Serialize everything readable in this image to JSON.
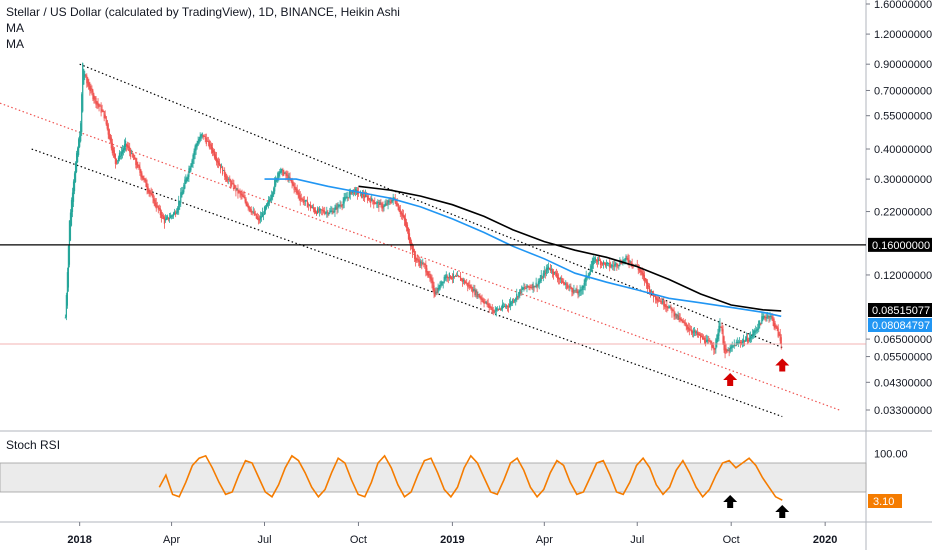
{
  "legend": {
    "title": "Stellar / US Dollar (calculated by TradingView), 1D, BINANCE, Heikin Ashi",
    "ma1": "MA",
    "ma2": "MA"
  },
  "rsi_panel": {
    "title": "Stoch RSI"
  },
  "colors": {
    "up": "#26a69a",
    "down": "#ef5350",
    "ma_fast": "#2196f3",
    "ma_slow": "#000000",
    "stoch": "#f57c00",
    "arrow_red": "#d50000",
    "arrow_black": "#000000",
    "badge_red": "#ef5350",
    "badge_blue": "#2196f3",
    "badge_orange": "#f57c00"
  },
  "chart_data": [
    {
      "type": "candlestick",
      "title": "Stellar / US Dollar (calculated by TradingView), 1D, BINANCE, Heikin Ashi",
      "y_scale": "log",
      "y_ticks": [
        "1.60000000",
        "1.20000000",
        "0.90000000",
        "0.70000000",
        "0.55000000",
        "0.40000000",
        "0.30000000",
        "0.22000000",
        "0.12000000",
        "0.06500000",
        "0.05500000",
        "0.04300000",
        "0.03300000"
      ],
      "x_ticks": [
        "2018",
        "Apr",
        "Jul",
        "Oct",
        "2019",
        "Apr",
        "Jul",
        "Oct",
        "2020"
      ],
      "horizontal_line": {
        "value": 0.16,
        "label": "0.16000000"
      },
      "price_badges": [
        {
          "value": 0.08515077,
          "label": "0.08515077",
          "color": "black"
        },
        {
          "value": 0.08084797,
          "label": "0.08084797",
          "color": "blue"
        }
      ],
      "series_price": [
        [
          "2017-12-18",
          0.08
        ],
        [
          "2017-12-22",
          0.2
        ],
        [
          "2017-12-26",
          0.3
        ],
        [
          "2018-01-02",
          0.5
        ],
        [
          "2018-01-04",
          0.9
        ],
        [
          "2018-01-08",
          0.75
        ],
        [
          "2018-01-15",
          0.65
        ],
        [
          "2018-01-25",
          0.55
        ],
        [
          "2018-02-05",
          0.35
        ],
        [
          "2018-02-15",
          0.42
        ],
        [
          "2018-03-01",
          0.32
        ],
        [
          "2018-03-15",
          0.24
        ],
        [
          "2018-03-25",
          0.2
        ],
        [
          "2018-04-05",
          0.22
        ],
        [
          "2018-04-15",
          0.3
        ],
        [
          "2018-04-25",
          0.42
        ],
        [
          "2018-05-01",
          0.46
        ],
        [
          "2018-05-10",
          0.4
        ],
        [
          "2018-05-25",
          0.3
        ],
        [
          "2018-06-10",
          0.25
        ],
        [
          "2018-06-25",
          0.2
        ],
        [
          "2018-07-05",
          0.24
        ],
        [
          "2018-07-15",
          0.33
        ],
        [
          "2018-07-25",
          0.3
        ],
        [
          "2018-08-05",
          0.25
        ],
        [
          "2018-08-20",
          0.22
        ],
        [
          "2018-09-05",
          0.22
        ],
        [
          "2018-09-15",
          0.24
        ],
        [
          "2018-09-25",
          0.27
        ],
        [
          "2018-10-10",
          0.25
        ],
        [
          "2018-10-25",
          0.23
        ],
        [
          "2018-11-05",
          0.25
        ],
        [
          "2018-11-15",
          0.2
        ],
        [
          "2018-11-25",
          0.14
        ],
        [
          "2018-12-05",
          0.13
        ],
        [
          "2018-12-15",
          0.1
        ],
        [
          "2018-12-25",
          0.12
        ],
        [
          "2019-01-10",
          0.115
        ],
        [
          "2019-01-25",
          0.1
        ],
        [
          "2019-02-10",
          0.085
        ],
        [
          "2019-02-25",
          0.09
        ],
        [
          "2019-03-10",
          0.105
        ],
        [
          "2019-03-25",
          0.11
        ],
        [
          "2019-04-05",
          0.13
        ],
        [
          "2019-04-20",
          0.11
        ],
        [
          "2019-05-05",
          0.1
        ],
        [
          "2019-05-20",
          0.14
        ],
        [
          "2019-06-05",
          0.13
        ],
        [
          "2019-06-20",
          0.14
        ],
        [
          "2019-07-01",
          0.13
        ],
        [
          "2019-07-15",
          0.1
        ],
        [
          "2019-08-01",
          0.088
        ],
        [
          "2019-08-15",
          0.075
        ],
        [
          "2019-09-01",
          0.066
        ],
        [
          "2019-09-15",
          0.06
        ],
        [
          "2019-09-20",
          0.078
        ],
        [
          "2019-09-25",
          0.056
        ],
        [
          "2019-10-05",
          0.062
        ],
        [
          "2019-10-20",
          0.066
        ],
        [
          "2019-11-01",
          0.08
        ],
        [
          "2019-11-08",
          0.082
        ],
        [
          "2019-11-15",
          0.07
        ],
        [
          "2019-11-19",
          0.062
        ]
      ],
      "moving_average_fast": [
        [
          "2018-07-01",
          0.3
        ],
        [
          "2018-08-01",
          0.3
        ],
        [
          "2018-09-01",
          0.28
        ],
        [
          "2018-10-01",
          0.265
        ],
        [
          "2018-11-01",
          0.25
        ],
        [
          "2018-12-01",
          0.23
        ],
        [
          "2019-01-01",
          0.205
        ],
        [
          "2019-02-01",
          0.18
        ],
        [
          "2019-03-01",
          0.158
        ],
        [
          "2019-04-01",
          0.14
        ],
        [
          "2019-05-01",
          0.122
        ],
        [
          "2019-06-01",
          0.112
        ],
        [
          "2019-07-01",
          0.104
        ],
        [
          "2019-08-01",
          0.096
        ],
        [
          "2019-09-01",
          0.092
        ],
        [
          "2019-10-01",
          0.088
        ],
        [
          "2019-11-01",
          0.084
        ],
        [
          "2019-11-19",
          0.0808
        ]
      ],
      "moving_average_slow": [
        [
          "2018-10-01",
          0.28
        ],
        [
          "2018-11-01",
          0.27
        ],
        [
          "2018-12-01",
          0.255
        ],
        [
          "2019-01-01",
          0.235
        ],
        [
          "2019-02-01",
          0.21
        ],
        [
          "2019-03-01",
          0.185
        ],
        [
          "2019-04-01",
          0.165
        ],
        [
          "2019-05-01",
          0.152
        ],
        [
          "2019-06-01",
          0.142
        ],
        [
          "2019-07-01",
          0.13
        ],
        [
          "2019-08-01",
          0.115
        ],
        [
          "2019-09-01",
          0.1
        ],
        [
          "2019-10-01",
          0.09
        ],
        [
          "2019-11-01",
          0.086
        ],
        [
          "2019-11-19",
          0.0851
        ]
      ],
      "trendlines": [
        {
          "style": "dotted",
          "color": "#000000",
          "from": [
            "2018-01-01",
            0.9
          ],
          "to": [
            "2019-11-20",
            0.06
          ]
        },
        {
          "style": "dotted",
          "color": "#000000",
          "from": [
            "2017-11-15",
            0.4
          ],
          "to": [
            "2019-11-20",
            0.031
          ]
        },
        {
          "style": "dotted",
          "color": "#ef5350",
          "from": [
            "2017-10-15",
            0.62
          ],
          "to": [
            "2020-01-15",
            0.033
          ]
        }
      ],
      "arrows": [
        {
          "x": "2019-09-30",
          "value": 0.047,
          "color": "red",
          "direction": "up"
        },
        {
          "x": "2019-11-20",
          "value": 0.054,
          "color": "red",
          "direction": "up"
        }
      ]
    },
    {
      "type": "line",
      "title": "Stoch RSI",
      "y_ticks": [
        "100.00"
      ],
      "band": [
        20,
        80
      ],
      "value_badge": {
        "value": 3.1,
        "label": "3.10"
      },
      "series": [
        {
          "values": [
            30,
            55,
            15,
            10,
            40,
            75,
            90,
            95,
            70,
            40,
            15,
            20,
            55,
            85,
            80,
            50,
            20,
            10,
            35,
            70,
            95,
            85,
            60,
            30,
            10,
            25,
            60,
            90,
            80,
            45,
            15,
            10,
            40,
            80,
            95,
            70,
            35,
            10,
            20,
            55,
            85,
            90,
            60,
            25,
            10,
            30,
            70,
            95,
            80,
            50,
            20,
            15,
            45,
            80,
            90,
            65,
            30,
            10,
            25,
            60,
            85,
            75,
            40,
            15,
            20,
            50,
            80,
            85,
            55,
            20,
            15,
            40,
            75,
            90,
            70,
            35,
            15,
            30,
            65,
            85,
            60,
            30,
            10,
            25,
            55,
            80,
            85,
            70,
            80,
            90,
            75,
            50,
            30,
            10,
            3
          ]
        }
      ],
      "arrows": [
        {
          "x": "2019-09-30",
          "color": "black",
          "direction": "up"
        },
        {
          "x": "2019-11-20",
          "color": "black",
          "direction": "up"
        }
      ]
    }
  ]
}
